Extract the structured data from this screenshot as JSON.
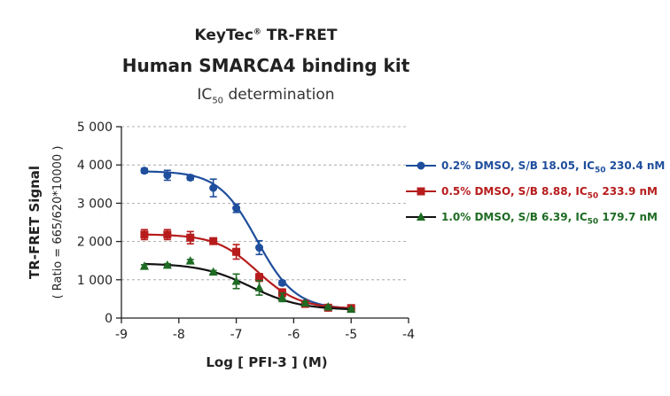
{
  "title": {
    "brand": "KeyTec",
    "reg": "®",
    "brand_rest": " TR-FRET",
    "main": "Human SMARCA4 binding kit",
    "sub_pre": "IC",
    "sub_subscript": "50",
    "sub_post": " determination"
  },
  "chart_data": {
    "type": "scatter",
    "xlabel": "Log [ PFI-3 ]  (M)",
    "ylabel": "TR-FRET Signal",
    "ylabel2": "( Ratio = 665/620*10000 )",
    "xlim": [
      -9,
      -4
    ],
    "ylim": [
      0,
      5000
    ],
    "x_ticks": [
      -9,
      -8,
      -7,
      -6,
      -5,
      -4
    ],
    "x_tick_labels": [
      "-9",
      "-8",
      "-7",
      "-6",
      "-5",
      "-4"
    ],
    "y_ticks": [
      0,
      1000,
      2000,
      3000,
      4000,
      5000
    ],
    "y_tick_labels": [
      "0",
      "1 000",
      "2 000",
      "3 000",
      "4 000",
      "5 000"
    ],
    "grid": "horizontal-dashed",
    "legend_position": "right",
    "series": [
      {
        "name": "0.2% DMSO, S/B 18.05, IC50 230.4 nM",
        "label_parts": {
          "pre": "0.2% DMSO, S/B 18.05, IC",
          "sub": "50",
          "post": " 230.4 nM"
        },
        "color": "#1f4e9c",
        "marker": "circle",
        "x": [
          -8.6,
          -8.2,
          -7.8,
          -7.4,
          -7.0,
          -6.6,
          -6.2,
          -5.8,
          -5.4,
          -5.0
        ],
        "y": [
          3850,
          3730,
          3670,
          3400,
          2870,
          1840,
          920,
          390,
          270,
          250
        ],
        "err": [
          60,
          130,
          60,
          230,
          110,
          180,
          60,
          40,
          30,
          30
        ],
        "fit": {
          "top": 3840,
          "bottom": 230,
          "logIC50": -6.64,
          "hill": 1.3
        }
      },
      {
        "name": "0.5% DMSO, S/B 8.88, IC50 233.9 nM",
        "label_parts": {
          "pre": "0.5% DMSO, S/B 8.88, IC",
          "sub": "50",
          "post": " 233.9 nM"
        },
        "color": "#b71c1c",
        "marker": "square",
        "x": [
          -8.6,
          -8.2,
          -7.8,
          -7.4,
          -7.0,
          -6.6,
          -6.2,
          -5.8,
          -5.4,
          -5.0
        ],
        "y": [
          2180,
          2180,
          2100,
          2010,
          1730,
          1060,
          660,
          370,
          270,
          260
        ],
        "err": [
          130,
          130,
          160,
          60,
          190,
          100,
          100,
          40,
          30,
          30
        ],
        "fit": {
          "top": 2190,
          "bottom": 240,
          "logIC50": -6.63,
          "hill": 1.2
        }
      },
      {
        "name": "1.0% DMSO, S/B 6.39, IC50 179.7 nM",
        "label_parts": {
          "pre": "1.0% DMSO, S/B 6.39, IC",
          "sub": "50",
          "post": " 179.7 nM"
        },
        "color": "#1e6b23",
        "marker": "triangle",
        "x": [
          -8.6,
          -8.2,
          -7.8,
          -7.4,
          -7.0,
          -6.6,
          -6.2,
          -5.8,
          -5.4,
          -5.0
        ],
        "y": [
          1350,
          1380,
          1490,
          1200,
          960,
          790,
          540,
          390,
          290,
          230
        ],
        "err": [
          40,
          40,
          40,
          40,
          190,
          190,
          110,
          40,
          30,
          30
        ],
        "fit": {
          "top": 1430,
          "bottom": 210,
          "logIC50": -6.75,
          "hill": 1.0
        },
        "line_color": "#111111"
      }
    ]
  }
}
